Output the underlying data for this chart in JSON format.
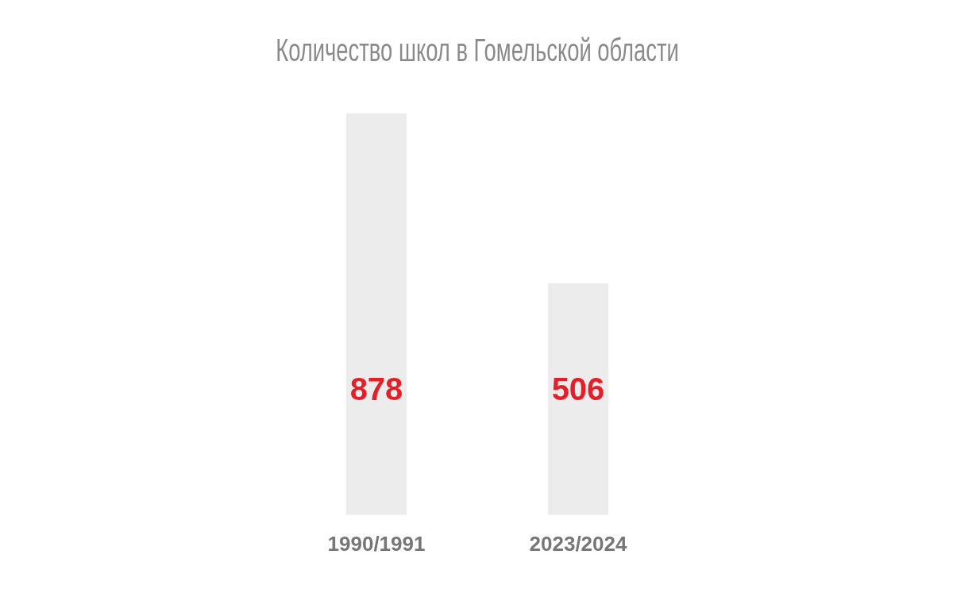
{
  "chart_data": {
    "type": "bar",
    "title": "Количество школ в Гомельской области",
    "categories": [
      "1990/1991",
      "2023/2024"
    ],
    "values": [
      878,
      506
    ],
    "color": "#ebeceb",
    "tick_labels": "x",
    "data_labels": true,
    "grid": false,
    "legend": false
  }
}
